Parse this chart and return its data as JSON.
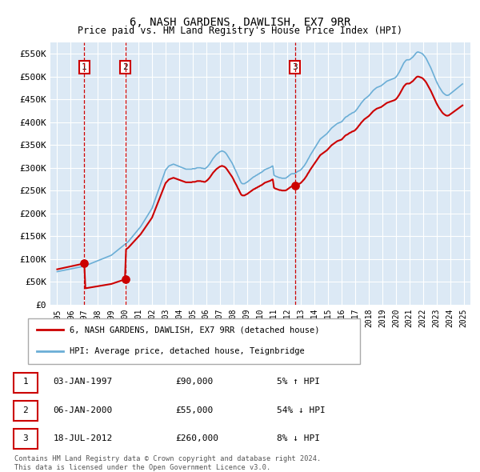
{
  "title": "6, NASH GARDENS, DAWLISH, EX7 9RR",
  "subtitle": "Price paid vs. HM Land Registry's House Price Index (HPI)",
  "plot_bg_color": "#dce9f5",
  "ylim": [
    0,
    575000
  ],
  "yticks": [
    0,
    50000,
    100000,
    150000,
    200000,
    250000,
    300000,
    350000,
    400000,
    450000,
    500000,
    550000
  ],
  "ytick_labels": [
    "£0",
    "£50K",
    "£100K",
    "£150K",
    "£200K",
    "£250K",
    "£300K",
    "£350K",
    "£400K",
    "£450K",
    "£500K",
    "£550K"
  ],
  "xlim_start": 1994.5,
  "xlim_end": 2025.5,
  "xtick_years": [
    1995,
    1996,
    1997,
    1998,
    1999,
    2000,
    2001,
    2002,
    2003,
    2004,
    2005,
    2006,
    2007,
    2008,
    2009,
    2010,
    2011,
    2012,
    2013,
    2014,
    2015,
    2016,
    2017,
    2018,
    2019,
    2020,
    2021,
    2022,
    2023,
    2024,
    2025
  ],
  "hpi_color": "#6baed6",
  "price_color": "#cc0000",
  "sale_events": [
    {
      "year": 1997.0,
      "price": 90000,
      "label": "1"
    },
    {
      "year": 2000.04,
      "price": 55000,
      "label": "2"
    },
    {
      "year": 2012.55,
      "price": 260000,
      "label": "3"
    }
  ],
  "legend_entries": [
    {
      "label": "6, NASH GARDENS, DAWLISH, EX7 9RR (detached house)",
      "color": "#cc0000"
    },
    {
      "label": "HPI: Average price, detached house, Teignbridge",
      "color": "#6baed6"
    }
  ],
  "table_rows": [
    {
      "num": "1",
      "date": "03-JAN-1997",
      "price": "£90,000",
      "pct": "5% ↑ HPI"
    },
    {
      "num": "2",
      "date": "06-JAN-2000",
      "price": "£55,000",
      "pct": "54% ↓ HPI"
    },
    {
      "num": "3",
      "date": "18-JUL-2012",
      "price": "£260,000",
      "pct": "8% ↓ HPI"
    }
  ],
  "footnote": "Contains HM Land Registry data © Crown copyright and database right 2024.\nThis data is licensed under the Open Government Licence v3.0.",
  "hpi_data_y": [
    72000,
    72500,
    73000,
    73500,
    74000,
    74500,
    75000,
    75500,
    76000,
    76500,
    77000,
    77500,
    78000,
    78500,
    79000,
    79500,
    80000,
    80500,
    81000,
    81500,
    82000,
    82500,
    83000,
    83500,
    84000,
    85000,
    86000,
    87000,
    88000,
    89000,
    90000,
    91000,
    92000,
    93000,
    94000,
    95000,
    96000,
    97000,
    98000,
    99000,
    100000,
    101000,
    102000,
    103000,
    104000,
    105000,
    106000,
    107000,
    108000,
    110000,
    112000,
    114000,
    116000,
    118000,
    120000,
    122000,
    124000,
    126000,
    128000,
    130000,
    132000,
    134000,
    136000,
    138000,
    141000,
    144000,
    147000,
    150000,
    153000,
    156000,
    159000,
    162000,
    165000,
    168000,
    171000,
    175000,
    179000,
    183000,
    187000,
    191000,
    195000,
    199000,
    203000,
    207000,
    211000,
    218000,
    225000,
    232000,
    239000,
    246000,
    253000,
    260000,
    267000,
    274000,
    281000,
    288000,
    295000,
    298000,
    301000,
    304000,
    305000,
    306000,
    307000,
    308000,
    307000,
    306000,
    305000,
    304000,
    303000,
    302000,
    301000,
    300000,
    299000,
    298000,
    297000,
    297000,
    297000,
    297000,
    297000,
    297000,
    298000,
    298000,
    298000,
    299000,
    300000,
    300000,
    300000,
    300000,
    299000,
    299000,
    298000,
    298000,
    300000,
    302000,
    305000,
    308000,
    312000,
    316000,
    320000,
    323000,
    326000,
    329000,
    331000,
    333000,
    335000,
    336000,
    337000,
    336000,
    335000,
    333000,
    330000,
    326000,
    322000,
    318000,
    314000,
    310000,
    305000,
    299000,
    294000,
    289000,
    283000,
    278000,
    272000,
    267000,
    265000,
    265000,
    265000,
    267000,
    268000,
    270000,
    272000,
    274000,
    276000,
    278000,
    280000,
    281000,
    283000,
    284000,
    286000,
    287000,
    289000,
    290000,
    292000,
    294000,
    296000,
    297000,
    298000,
    299000,
    300000,
    301000,
    303000,
    304000,
    284000,
    282000,
    281000,
    280000,
    279000,
    278000,
    278000,
    277000,
    277000,
    277000,
    277000,
    278000,
    280000,
    282000,
    284000,
    286000,
    287000,
    287000,
    287000,
    288000,
    290000,
    292000,
    293000,
    294000,
    296000,
    299000,
    302000,
    305000,
    309000,
    313000,
    318000,
    322000,
    327000,
    331000,
    335000,
    339000,
    343000,
    347000,
    351000,
    355000,
    359000,
    363000,
    365000,
    367000,
    369000,
    371000,
    373000,
    375000,
    378000,
    381000,
    384000,
    387000,
    389000,
    391000,
    393000,
    395000,
    397000,
    398000,
    399000,
    400000,
    401000,
    404000,
    407000,
    410000,
    412000,
    413000,
    415000,
    417000,
    418000,
    420000,
    421000,
    422000,
    424000,
    427000,
    430000,
    434000,
    437000,
    441000,
    444000,
    447000,
    450000,
    452000,
    454000,
    456000,
    458000,
    461000,
    464000,
    467000,
    470000,
    472000,
    474000,
    476000,
    477000,
    478000,
    479000,
    480000,
    482000,
    484000,
    486000,
    488000,
    490000,
    491000,
    492000,
    493000,
    494000,
    495000,
    496000,
    497000,
    499000,
    502000,
    506000,
    510000,
    515000,
    520000,
    525000,
    530000,
    533000,
    536000,
    537000,
    537000,
    537000,
    539000,
    541000,
    543000,
    546000,
    549000,
    552000,
    554000,
    554000,
    553000,
    552000,
    551000,
    549000,
    546000,
    543000,
    539000,
    534000,
    529000,
    524000,
    519000,
    513000,
    507000,
    501000,
    495000,
    489000,
    484000,
    479000,
    475000,
    471000,
    467000,
    464000,
    462000,
    460000,
    459000,
    459000,
    460000,
    462000,
    464000,
    466000,
    468000,
    470000,
    472000,
    474000,
    476000,
    478000,
    480000,
    482000,
    484000
  ]
}
